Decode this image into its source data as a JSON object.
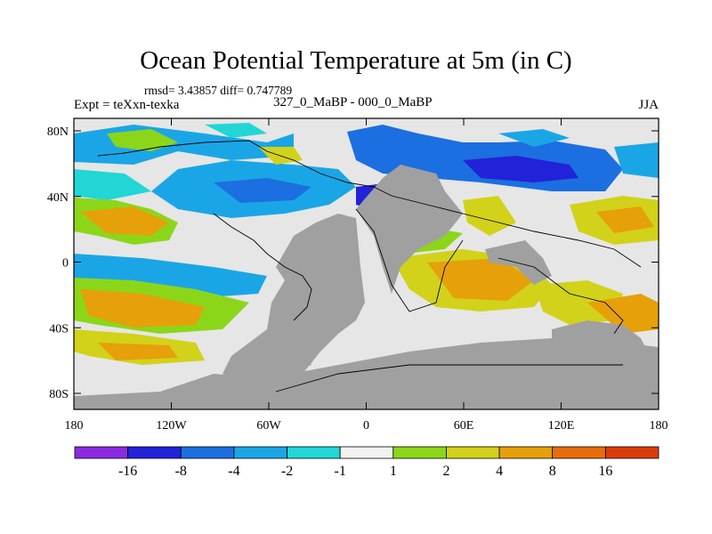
{
  "title": "Ocean Potential Temperature at 5m (in C)",
  "stats_line": "rmsd= 3.43857 diff= 0.747789",
  "experiment_label": "Expt = teXxn-texka",
  "comparison_label": "327_0_MaBP - 000_0_MaBP",
  "season_label": "JJA",
  "x_ticks": [
    "180",
    "120W",
    "60W",
    "0",
    "60E",
    "120E",
    "180"
  ],
  "y_ticks": [
    "80N",
    "40N",
    "0",
    "40S",
    "80S"
  ],
  "colorbar": {
    "colors": [
      "#8a2be2",
      "#2222d8",
      "#1b6fe0",
      "#1aa6e6",
      "#22d6d6",
      "#f2f2f2",
      "#8cd61a",
      "#d2d21a",
      "#e6a00a",
      "#e66e0a",
      "#dc3c0a"
    ],
    "labels": [
      "-16",
      "-8",
      "-4",
      "-2",
      "-1",
      "1",
      "2",
      "4",
      "8",
      "16"
    ]
  },
  "palette": {
    "land": "#a0a0a0"
  }
}
